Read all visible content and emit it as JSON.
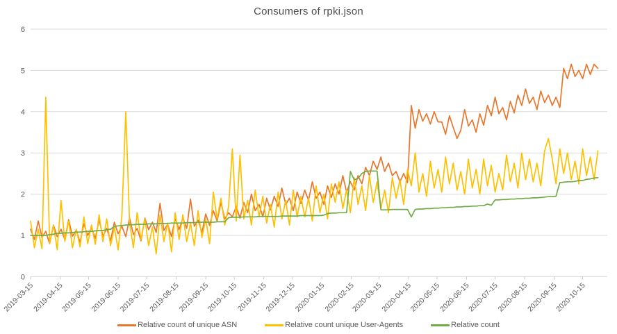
{
  "title": "Consumers of rpki.json",
  "colors": {
    "asn_orange": "#E8762C",
    "useragent_yellow": "#FFC000",
    "relative_green": "#70AD47",
    "grid": "#D9D9D9",
    "tick": "#C9C9C9",
    "text": "#595959",
    "title_text": "#4D4D4D",
    "background": "#FFFFFF"
  },
  "chart_data": {
    "type": "line",
    "title": "Consumers of rpki.json",
    "xlabel": "",
    "ylabel": "",
    "ylim": [
      0,
      6
    ],
    "y_ticks": [
      0,
      1,
      2,
      3,
      4,
      5,
      6
    ],
    "grid": true,
    "legend_position": "bottom",
    "x_start": "2019-03-15",
    "x_end": "2020-10-31",
    "x_step_days": 4,
    "n_points": 150,
    "x_total_days": 596,
    "x_tick_labels": [
      "2019-03-15",
      "2019-04-15",
      "2019-05-15",
      "2019-06-15",
      "2019-07-15",
      "2019-08-15",
      "2019-09-15",
      "2019-10-15",
      "2019-11-15",
      "2019-12-15",
      "2020-01-15",
      "2020-02-15",
      "2020-03-15",
      "2020-04-15",
      "2020-05-15",
      "2020-06-15",
      "2020-07-15",
      "2020-08-15",
      "2020-09-15",
      "2020-10-15"
    ],
    "x_tick_day_offsets": [
      0,
      31,
      61,
      92,
      122,
      153,
      184,
      214,
      245,
      275,
      306,
      337,
      366,
      397,
      427,
      458,
      488,
      519,
      550,
      580
    ],
    "series": [
      {
        "name": "Relative count of unique ASN",
        "color": "#E8762C",
        "values": [
          1.15,
          0.9,
          1.35,
          0.95,
          1.1,
          0.8,
          1.25,
          0.97,
          1.15,
          0.9,
          1.38,
          0.98,
          1.13,
          0.83,
          1.28,
          1.0,
          1.18,
          0.93,
          1.38,
          0.98,
          1.17,
          0.87,
          1.32,
          1.04,
          1.22,
          0.97,
          1.42,
          1.02,
          1.17,
          0.87,
          1.42,
          1.14,
          1.32,
          1.07,
          1.78,
          1.12,
          1.27,
          0.97,
          1.42,
          1.14,
          1.42,
          1.17,
          1.88,
          1.22,
          1.37,
          1.07,
          1.52,
          1.24,
          1.6,
          1.35,
          1.8,
          1.4,
          1.55,
          1.45,
          1.7,
          1.42,
          1.8,
          1.55,
          2.0,
          1.6,
          1.75,
          1.45,
          1.9,
          1.62,
          1.95,
          1.7,
          2.15,
          1.75,
          1.9,
          1.6,
          2.05,
          1.77,
          2.1,
          1.85,
          2.3,
          1.9,
          2.05,
          1.75,
          2.2,
          1.92,
          2.25,
          2.0,
          2.45,
          2.05,
          2.3,
          2.1,
          2.45,
          2.25,
          2.65,
          2.45,
          2.8,
          2.6,
          2.9,
          2.55,
          2.75,
          2.45,
          2.55,
          2.3,
          2.5,
          2.28,
          4.15,
          3.6,
          4.05,
          3.77,
          3.95,
          3.7,
          4.0,
          3.75,
          3.75,
          3.45,
          3.9,
          3.62,
          3.35,
          3.55,
          4.05,
          3.65,
          3.8,
          3.5,
          3.95,
          3.67,
          4.15,
          3.9,
          4.35,
          3.95,
          4.1,
          3.8,
          4.25,
          3.97,
          4.4,
          4.15,
          4.55,
          4.2,
          4.35,
          4.05,
          4.5,
          4.22,
          4.4,
          4.15,
          4.35,
          4.1,
          5.05,
          4.8,
          5.15,
          4.85,
          5.0,
          4.8,
          5.15,
          4.9,
          5.15,
          5.05
        ]
      },
      {
        "name": "Relative count unique User-Agents",
        "color": "#FFC000",
        "values": [
          1.35,
          0.7,
          1.15,
          0.68,
          4.35,
          0.8,
          1.25,
          0.65,
          1.85,
          0.85,
          1.35,
          0.7,
          1.15,
          0.72,
          1.45,
          0.8,
          1.25,
          0.78,
          1.5,
          0.85,
          1.4,
          0.75,
          1.2,
          0.65,
          1.5,
          4.0,
          1.3,
          0.7,
          1.55,
          0.9,
          1.4,
          0.75,
          1.2,
          0.55,
          1.5,
          0.85,
          1.3,
          0.6,
          1.55,
          0.9,
          1.5,
          0.85,
          1.3,
          0.75,
          1.6,
          0.95,
          1.4,
          0.8,
          2.05,
          1.4,
          1.9,
          1.25,
          1.7,
          3.1,
          1.35,
          2.95,
          1.4,
          1.85,
          1.25,
          2.1,
          1.45,
          1.95,
          1.3,
          1.75,
          1.2,
          2.05,
          1.4,
          1.85,
          1.25,
          2.1,
          1.45,
          1.95,
          1.45,
          1.9,
          1.35,
          2.2,
          1.55,
          2.0,
          1.4,
          2.25,
          1.8,
          2.3,
          1.65,
          2.1,
          1.55,
          2.4,
          1.75,
          2.2,
          1.6,
          2.45,
          1.8,
          2.3,
          1.65,
          2.1,
          1.55,
          2.4,
          1.9,
          2.35,
          1.75,
          2.6,
          2.2,
          3.0,
          2.05,
          2.5,
          1.95,
          2.8,
          2.15,
          2.6,
          2.05,
          2.9,
          2.25,
          2.75,
          2.1,
          2.55,
          2.0,
          2.85,
          2.15,
          2.6,
          2.0,
          2.85,
          2.2,
          2.7,
          2.05,
          2.5,
          2.1,
          2.95,
          2.3,
          2.75,
          2.15,
          3.0,
          2.35,
          2.85,
          2.3,
          2.75,
          2.2,
          3.05,
          3.35,
          2.85,
          2.25,
          3.1,
          2.5,
          3.0,
          2.35,
          2.8,
          2.25,
          3.1,
          2.45,
          2.9,
          2.35,
          3.05
        ]
      },
      {
        "name": "Relative count",
        "color": "#70AD47",
        "values": [
          1.0,
          1.0,
          1.0,
          1.0,
          1.0,
          1.02,
          1.03,
          1.05,
          1.05,
          1.06,
          1.06,
          1.07,
          1.08,
          1.08,
          1.09,
          1.1,
          1.1,
          1.11,
          1.12,
          1.12,
          1.14,
          1.15,
          1.22,
          1.23,
          1.24,
          1.25,
          1.26,
          1.26,
          1.27,
          1.27,
          1.27,
          1.28,
          1.28,
          1.28,
          1.29,
          1.29,
          1.29,
          1.3,
          1.3,
          1.3,
          1.3,
          1.31,
          1.31,
          1.31,
          1.32,
          1.32,
          1.32,
          1.32,
          1.32,
          1.33,
          1.33,
          1.33,
          1.43,
          1.44,
          1.44,
          1.44,
          1.45,
          1.45,
          1.45,
          1.45,
          1.46,
          1.46,
          1.46,
          1.46,
          1.46,
          1.46,
          1.47,
          1.47,
          1.47,
          1.47,
          1.47,
          1.48,
          1.48,
          1.48,
          1.48,
          1.48,
          1.48,
          1.49,
          1.53,
          1.54,
          1.54,
          1.55,
          1.55,
          1.55,
          2.55,
          2.35,
          2.38,
          2.5,
          2.55,
          2.56,
          2.56,
          2.56,
          1.62,
          1.62,
          1.62,
          1.63,
          1.63,
          1.63,
          1.63,
          1.63,
          1.45,
          1.63,
          1.64,
          1.64,
          1.65,
          1.65,
          1.66,
          1.66,
          1.67,
          1.67,
          1.68,
          1.68,
          1.69,
          1.69,
          1.7,
          1.7,
          1.71,
          1.71,
          1.72,
          1.72,
          1.76,
          1.73,
          1.86,
          1.86,
          1.87,
          1.87,
          1.88,
          1.88,
          1.89,
          1.89,
          1.9,
          1.9,
          1.91,
          1.91,
          1.92,
          1.93,
          1.94,
          1.94,
          1.95,
          2.28,
          2.29,
          2.3,
          2.3,
          2.31,
          2.33,
          2.33,
          2.36,
          2.37,
          2.39,
          2.4
        ]
      }
    ]
  }
}
